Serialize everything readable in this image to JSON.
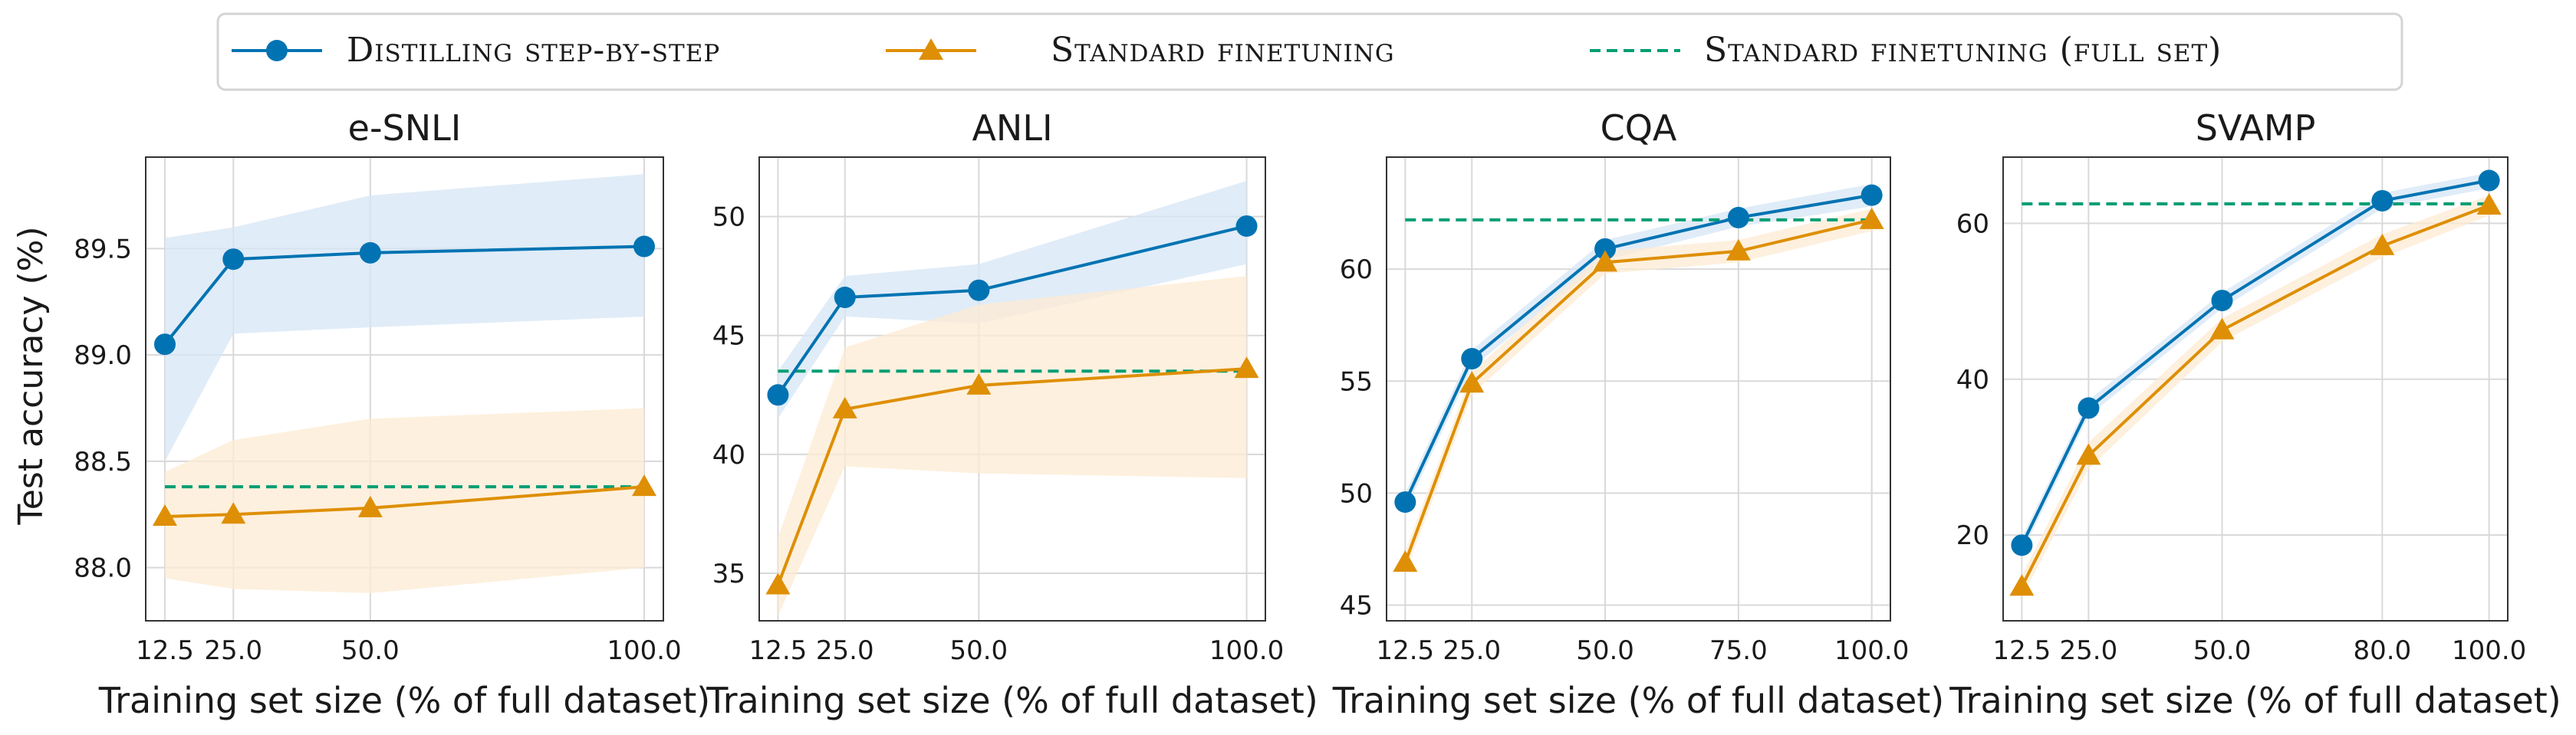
{
  "legend": {
    "items": [
      {
        "label": "Distilling step-by-step",
        "color": "#0173b2",
        "marker": "circle",
        "style": "solid"
      },
      {
        "label": "Standard finetuning",
        "color": "#de8f05",
        "marker": "triangle",
        "style": "solid"
      },
      {
        "label": "Standard finetuning (full set)",
        "color": "#029e73",
        "marker": "none",
        "style": "dashed"
      }
    ]
  },
  "ylabel": "Test accuracy (%)",
  "chart_data": [
    {
      "type": "line",
      "title": "e-SNLI",
      "xlabel": "Training set size (% of full dataset)",
      "ylabel": "Test accuracy (%)",
      "xlim": [
        9.0,
        103.5
      ],
      "ylim": [
        87.75,
        89.93
      ],
      "xticks": [
        12.5,
        25.0,
        50.0,
        100.0
      ],
      "xtick_labels": [
        "12.5",
        "25.0",
        "50.0",
        "100.0"
      ],
      "yticks": [
        88.0,
        88.5,
        89.0,
        89.5
      ],
      "ytick_labels": [
        "88.0",
        "88.5",
        "89.0",
        "89.5"
      ],
      "x": [
        12.5,
        25.0,
        50.0,
        100.0
      ],
      "series": [
        {
          "name": "Distilling step-by-step",
          "values": [
            89.05,
            89.45,
            89.48,
            89.51
          ],
          "band_low": [
            88.5,
            89.1,
            89.13,
            89.18
          ],
          "band_high": [
            89.55,
            89.6,
            89.75,
            89.85
          ]
        },
        {
          "name": "Standard finetuning",
          "values": [
            88.24,
            88.25,
            88.28,
            88.38
          ],
          "band_low": [
            87.95,
            87.9,
            87.88,
            88.0
          ],
          "band_high": [
            88.45,
            88.6,
            88.7,
            88.75
          ]
        }
      ],
      "full_set": 88.38
    },
    {
      "type": "line",
      "title": "ANLI",
      "xlabel": "Training set size (% of full dataset)",
      "ylabel": "",
      "xlim": [
        9.0,
        103.5
      ],
      "ylim": [
        33.0,
        52.5
      ],
      "xticks": [
        12.5,
        25.0,
        50.0,
        100.0
      ],
      "xtick_labels": [
        "12.5",
        "25.0",
        "50.0",
        "100.0"
      ],
      "yticks": [
        35,
        40,
        45,
        50
      ],
      "ytick_labels": [
        "35",
        "40",
        "45",
        "50"
      ],
      "x": [
        12.5,
        25.0,
        50.0,
        100.0
      ],
      "series": [
        {
          "name": "Distilling step-by-step",
          "values": [
            42.5,
            46.6,
            46.9,
            49.6
          ],
          "band_low": [
            41.5,
            45.8,
            45.5,
            48.0
          ],
          "band_high": [
            43.5,
            47.5,
            48.0,
            51.5
          ]
        },
        {
          "name": "Standard finetuning",
          "values": [
            34.5,
            41.9,
            42.9,
            43.6
          ],
          "band_low": [
            33.2,
            39.5,
            39.2,
            39.0
          ],
          "band_high": [
            36.5,
            44.5,
            46.3,
            47.5
          ]
        }
      ],
      "full_set": 43.5
    },
    {
      "type": "line",
      "title": "CQA",
      "xlabel": "Training set size (% of full dataset)",
      "ylabel": "",
      "xlim": [
        9.0,
        103.5
      ],
      "ylim": [
        44.3,
        65.0
      ],
      "xticks": [
        12.5,
        25.0,
        50.0,
        75.0,
        100.0
      ],
      "xtick_labels": [
        "12.5",
        "25.0",
        "50.0",
        "75.0",
        "100.0"
      ],
      "yticks": [
        45,
        50,
        55,
        60
      ],
      "ytick_labels": [
        "45",
        "50",
        "55",
        "60"
      ],
      "x": [
        12.5,
        25.0,
        50.0,
        75.0,
        100.0
      ],
      "series": [
        {
          "name": "Distilling step-by-step",
          "values": [
            49.6,
            56.0,
            60.9,
            62.3,
            63.3
          ],
          "band_low": [
            49.2,
            55.6,
            60.4,
            61.9,
            62.8
          ],
          "band_high": [
            50.0,
            56.4,
            61.3,
            62.7,
            63.8
          ]
        },
        {
          "name": "Standard finetuning",
          "values": [
            46.9,
            54.9,
            60.3,
            60.8,
            62.2
          ],
          "band_low": [
            46.4,
            54.4,
            59.8,
            60.3,
            61.7
          ],
          "band_high": [
            47.4,
            55.4,
            60.8,
            61.3,
            62.7
          ]
        }
      ],
      "full_set": 62.2
    },
    {
      "type": "line",
      "title": "SVAMP",
      "xlabel": "Training set size (% of full dataset)",
      "ylabel": "",
      "xlim": [
        9.0,
        103.5
      ],
      "ylim": [
        9.0,
        68.5
      ],
      "xticks": [
        12.5,
        25.0,
        50.0,
        80.0,
        100.0
      ],
      "xtick_labels": [
        "12.5",
        "25.0",
        "50.0",
        "80.0",
        "100.0"
      ],
      "yticks": [
        20,
        40,
        60
      ],
      "ytick_labels": [
        "20",
        "40",
        "60"
      ],
      "x": [
        12.5,
        25.0,
        50.0,
        80.0,
        100.0
      ],
      "series": [
        {
          "name": "Distilling step-by-step",
          "values": [
            18.7,
            36.3,
            50.1,
            62.9,
            65.5
          ],
          "band_low": [
            17.7,
            35.3,
            49.1,
            61.9,
            64.5
          ],
          "band_high": [
            19.7,
            37.3,
            51.1,
            63.9,
            66.5
          ]
        },
        {
          "name": "Standard finetuning",
          "values": [
            13.4,
            30.2,
            46.3,
            57.1,
            62.3
          ],
          "band_low": [
            12.0,
            28.5,
            44.8,
            55.6,
            61.0
          ],
          "band_high": [
            14.8,
            31.9,
            47.8,
            58.6,
            63.6
          ]
        }
      ],
      "full_set": 62.5
    }
  ]
}
